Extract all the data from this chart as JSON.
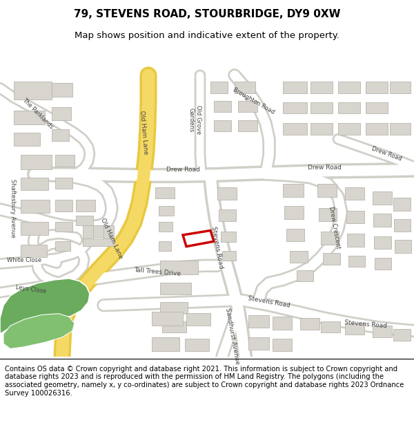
{
  "title": "79, STEVENS ROAD, STOURBRIDGE, DY9 0XW",
  "subtitle": "Map shows position and indicative extent of the property.",
  "footer": "Contains OS data © Crown copyright and database right 2021. This information is subject to Crown copyright and database rights 2023 and is reproduced with the permission of HM Land Registry. The polygons (including the associated geometry, namely x, y co-ordinates) are subject to Crown copyright and database rights 2023 Ordnance Survey 100026316.",
  "map_bg": "#f0ece2",
  "road_color": "#ffffff",
  "road_outline": "#d0cfc8",
  "building_color": "#d8d5ce",
  "building_outline": "#b8b5ae",
  "green_color": "#6aab5e",
  "yellow_road_fill": "#f5d965",
  "yellow_road_outline": "#e8c840",
  "highlight_color": "#cc0000",
  "label_color": "#444444",
  "title_fontsize": 11,
  "subtitle_fontsize": 9.5,
  "footer_fontsize": 7.2,
  "label_fontsize": 6.5,
  "header_bg": "#ffffff",
  "footer_bg": "#ffffff"
}
